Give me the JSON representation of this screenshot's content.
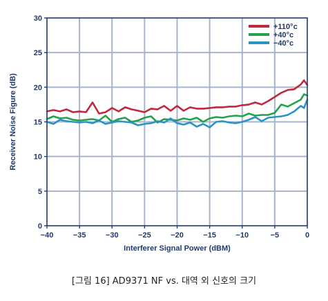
{
  "caption": "[그림 16] AD9371 NF vs. 대역 외 신호의 크기",
  "colors": {
    "grid": "#a7b4c9",
    "axis": "#1e3a6e",
    "text": "#1e3a6e"
  },
  "chart_data": {
    "type": "line",
    "title": "",
    "xlabel": "Interferer Signal Power (dBM)",
    "ylabel": "Receiver Noise Figure (dB)",
    "xlim": [
      -40,
      0
    ],
    "ylim": [
      0,
      30
    ],
    "xticks": [
      -40,
      -35,
      -30,
      -25,
      -20,
      -15,
      -10,
      -5,
      0
    ],
    "xtick_labels": [
      "−40",
      "−35",
      "−30",
      "−25",
      "−20",
      "−15",
      "−10",
      "−5",
      "0"
    ],
    "yticks": [
      0,
      5,
      10,
      15,
      20,
      25,
      30
    ],
    "ytick_labels": [
      "0",
      "5",
      "10",
      "15",
      "20",
      "25",
      "30"
    ],
    "grid": true,
    "legend_position": "top-right",
    "x": [
      -40,
      -39,
      -38,
      -37,
      -36,
      -35,
      -34,
      -33,
      -32,
      -31,
      -30,
      -29,
      -28,
      -27,
      -26,
      -25,
      -24,
      -23,
      -22,
      -21,
      -20,
      -19,
      -18,
      -17,
      -16,
      -15,
      -14,
      -13,
      -12,
      -11,
      -10,
      -9,
      -8,
      -7,
      -6,
      -5,
      -4,
      -3,
      -2,
      -1,
      -0.5,
      0
    ],
    "series": [
      {
        "name": "+110°c",
        "color": "#c1283e",
        "values": [
          16.5,
          16.7,
          16.5,
          16.8,
          16.4,
          16.5,
          16.4,
          17.8,
          16.2,
          16.4,
          17.0,
          16.5,
          17.1,
          16.8,
          16.6,
          16.4,
          16.9,
          16.8,
          17.3,
          16.6,
          17.3,
          16.6,
          17.1,
          16.9,
          16.9,
          17.0,
          17.1,
          17.1,
          17.2,
          17.2,
          17.4,
          17.5,
          17.8,
          17.5,
          18.0,
          18.6,
          19.2,
          19.6,
          19.7,
          20.4,
          21.0,
          20.3
        ]
      },
      {
        "name": "+40°c",
        "color": "#22a24a",
        "values": [
          15.4,
          15.8,
          15.5,
          15.6,
          15.3,
          15.2,
          15.3,
          15.4,
          15.2,
          15.9,
          15.0,
          15.4,
          15.6,
          15.0,
          15.2,
          15.6,
          15.8,
          14.9,
          15.4,
          15.3,
          15.2,
          15.5,
          15.3,
          15.6,
          15.0,
          15.5,
          15.7,
          15.6,
          15.8,
          15.9,
          15.8,
          16.2,
          15.9,
          16.0,
          16.0,
          16.3,
          17.5,
          17.2,
          17.7,
          18.2,
          19.0,
          18.8
        ]
      },
      {
        "name": "−40°c",
        "color": "#2b92c8",
        "values": [
          15.0,
          14.7,
          15.3,
          15.1,
          15.0,
          14.9,
          15.0,
          14.8,
          15.2,
          14.7,
          14.9,
          15.1,
          15.0,
          14.9,
          14.5,
          14.7,
          14.8,
          15.1,
          14.9,
          15.5,
          14.8,
          14.6,
          14.9,
          14.3,
          14.7,
          14.2,
          15.0,
          15.1,
          14.9,
          14.8,
          15.0,
          15.3,
          15.7,
          15.1,
          15.6,
          15.7,
          15.8,
          16.0,
          16.5,
          17.3,
          17.0,
          18.2
        ]
      }
    ]
  }
}
